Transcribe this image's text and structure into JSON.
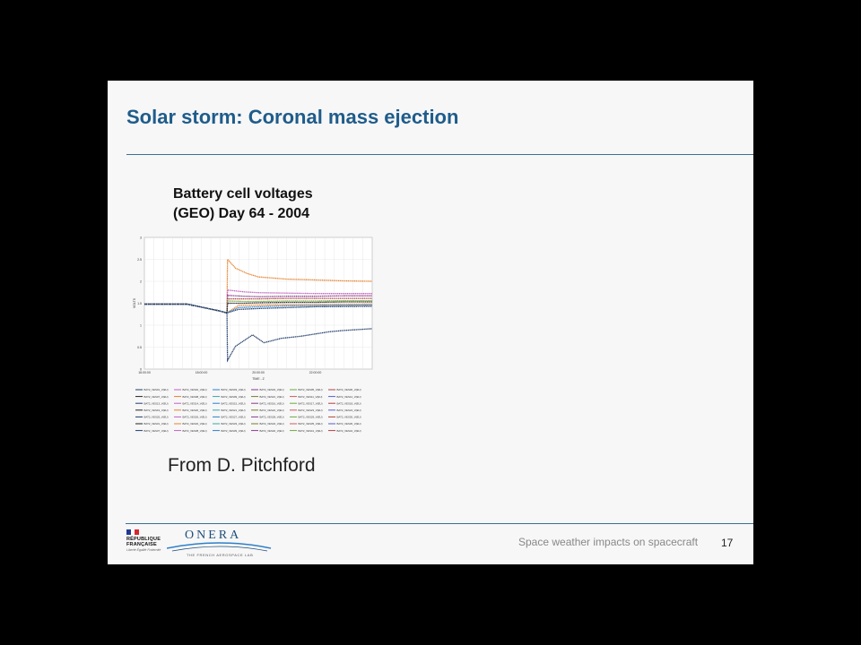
{
  "slide": {
    "title": "Solar storm: Coronal mass ejection",
    "chart_heading_line1": "Battery cell voltages",
    "chart_heading_line2": "(GEO) Day 64 - 2004",
    "credit": "From D. Pitchford",
    "footer_text": "Space weather impacts on spacecraft",
    "page_number": "17",
    "accent_color": "#1f5c8a"
  },
  "logos": {
    "republique_line1": "RÉPUBLIQUE",
    "republique_line2": "FRANÇAISE",
    "republique_motto": "Liberté Égalité Fraternité",
    "onera_name": "ONERA",
    "onera_tagline": "THE FRENCH AEROSPACE LAB"
  },
  "chart_data": {
    "type": "line",
    "xlabel": "TIME - Z",
    "ylabel": "VOLTS",
    "x_ticks": [
      "16:00:00",
      "18:00:00",
      "20:00:00",
      "22:00:00"
    ],
    "y_ticks": [
      "0",
      "0.5",
      "1",
      "1.5",
      "2",
      "2.5",
      "3"
    ],
    "xlim": [
      16,
      24
    ],
    "ylim": [
      0,
      3
    ],
    "grid": true,
    "legend_position": "bottom",
    "series": [
      {
        "name": "BAT2_VES01_V(EU)",
        "color": "#e8802a",
        "x": [
          16,
          17.5,
          18.6,
          18.9,
          19.3,
          20,
          21,
          22,
          24
        ],
        "y": [
          1.48,
          1.48,
          1.33,
          1.28,
          1.45,
          1.46,
          1.47,
          1.47,
          1.48
        ]
      },
      {
        "name": "BAT2_VES02_V(EU)",
        "color": "#e8802a",
        "x": [
          16,
          17.5,
          18.6,
          18.9,
          18.92,
          19.2,
          19.6,
          20,
          21,
          22,
          23,
          24
        ],
        "y": [
          1.48,
          1.48,
          1.33,
          1.28,
          2.5,
          2.3,
          2.18,
          2.1,
          2.05,
          2.03,
          2.01,
          2.0
        ]
      },
      {
        "name": "BAT2_VES03_V(EU)",
        "color": "#c060c0",
        "x": [
          16,
          17.5,
          18.6,
          18.9,
          18.92,
          19.5,
          20,
          21,
          22,
          23,
          24
        ],
        "y": [
          1.48,
          1.48,
          1.33,
          1.28,
          1.8,
          1.76,
          1.74,
          1.73,
          1.72,
          1.72,
          1.72
        ]
      },
      {
        "name": "BAT2_VES04_V(EU)",
        "color": "#8a3a8a",
        "x": [
          16,
          17.5,
          18.6,
          18.9,
          18.92,
          19.5,
          20,
          21,
          22,
          23,
          24
        ],
        "y": [
          1.48,
          1.48,
          1.33,
          1.28,
          1.68,
          1.66,
          1.65,
          1.66,
          1.66,
          1.67,
          1.67
        ]
      },
      {
        "name": "BAT2_VES05_V(EU)",
        "color": "#b04040",
        "x": [
          16,
          17.5,
          18.6,
          18.9,
          18.92,
          19.5,
          20,
          21,
          22,
          23,
          24
        ],
        "y": [
          1.48,
          1.48,
          1.33,
          1.28,
          1.6,
          1.6,
          1.6,
          1.61,
          1.61,
          1.61,
          1.61
        ]
      },
      {
        "name": "BAT2_VES06_V(EU)",
        "color": "#6fa83c",
        "x": [
          16,
          17.5,
          18.6,
          18.9,
          18.92,
          19.5,
          20,
          21,
          22,
          23,
          24
        ],
        "y": [
          1.48,
          1.48,
          1.33,
          1.28,
          1.55,
          1.54,
          1.54,
          1.55,
          1.55,
          1.56,
          1.56
        ]
      },
      {
        "name": "BAT2_VES07_V(EU)",
        "color": "#222222",
        "x": [
          16,
          17.5,
          18.6,
          18.9,
          18.92,
          19.5,
          20,
          21,
          22,
          23,
          24
        ],
        "y": [
          1.48,
          1.48,
          1.33,
          1.28,
          1.5,
          1.5,
          1.51,
          1.52,
          1.52,
          1.53,
          1.53
        ]
      },
      {
        "name": "BAT2_VES08_V(EU)",
        "color": "#2e7fc7",
        "x": [
          16,
          17.5,
          18.6,
          18.9,
          19.3,
          20,
          21,
          22,
          24
        ],
        "y": [
          1.48,
          1.48,
          1.33,
          1.28,
          1.4,
          1.42,
          1.44,
          1.45,
          1.46
        ]
      },
      {
        "name": "BAT2_VES09_V(EU)",
        "color": "#1f3d6a",
        "x": [
          16,
          17.5,
          18.6,
          18.9,
          19.3,
          20,
          21,
          22,
          24
        ],
        "y": [
          1.48,
          1.48,
          1.33,
          1.28,
          1.36,
          1.38,
          1.4,
          1.42,
          1.43
        ]
      },
      {
        "name": "BAT2_VES10_V(EU)",
        "color": "#1f3d6a",
        "x": [
          16,
          17.5,
          18.6,
          18.9,
          18.92,
          19.2,
          19.5,
          19.8,
          20.2,
          20.8,
          21.5,
          22,
          22.5,
          23,
          23.5,
          24
        ],
        "y": [
          1.48,
          1.48,
          1.33,
          1.28,
          0.2,
          0.52,
          0.65,
          0.78,
          0.6,
          0.7,
          0.75,
          0.8,
          0.85,
          0.88,
          0.9,
          0.92
        ]
      }
    ],
    "legend_entries": [
      "BAT2_VES01_V(EU)",
      "BAT2_VES02_V(EU)",
      "BAT2_VES03_V(EU)",
      "BAT2_VES04_V(EU)",
      "BAT2_VES05_V(EU)",
      "BAT2_VES06_V(EU)",
      "BAT2_VES07_V(EU)",
      "BAT2_VES08_V(EU)",
      "BAT2_VES09_V(EU)",
      "BAT2_VES10_V(EU)",
      "BAT2_VES11_V(EU)",
      "BAT2_VES12_V(EU)",
      "BAT2_VES13_V(EU)",
      "BAT2_VES14_V(EU)",
      "BAT2_VES15_V(EU)",
      "BAT2_VES16_V(EU)",
      "BAT2_VES17_V(EU)",
      "BAT2_VES18_V(EU)",
      "BAT2_VES19_V(EU)",
      "BAT2_VES20_V(EU)",
      "BAT2_VES21_V(EU)",
      "BAT2_VES22_V(EU)",
      "BAT2_VES23_V(EU)",
      "BAT2_VES24_V(EU)",
      "BAT2_VES25_V(EU)",
      "BAT2_VES26_V(EU)",
      "BAT2_VES27_V(EU)",
      "BAT2_VES28_V(EU)",
      "BAT2_VES29_V(EU)",
      "BAT2_VES30_V(EU)",
      "BAT2_VES31_V(EU)",
      "BAT2_VES32_V(EU)",
      "BAT2_VES33_V(EU)",
      "BAT2_VES34_V(EU)",
      "BAT2_VES35_V(EU)",
      "BAT2_VES36_V(EU)",
      "BAT2_VES37_V(EU)",
      "BAT2_VES38_V(EU)",
      "BAT2_VES39_V(EU)",
      "BAT2_VES40_V(EU)",
      "BAT2_VES41_V(EU)",
      "BAT2_VES42_V(EU)"
    ],
    "legend_colors": [
      "#1f3d6a",
      "#c060c0",
      "#2e7fc7",
      "#8a3a8a",
      "#6fa83c",
      "#b04040",
      "#222222",
      "#e8802a",
      "#3aa6a6",
      "#7a7a2a",
      "#d05a5a",
      "#5a5ad0"
    ]
  }
}
